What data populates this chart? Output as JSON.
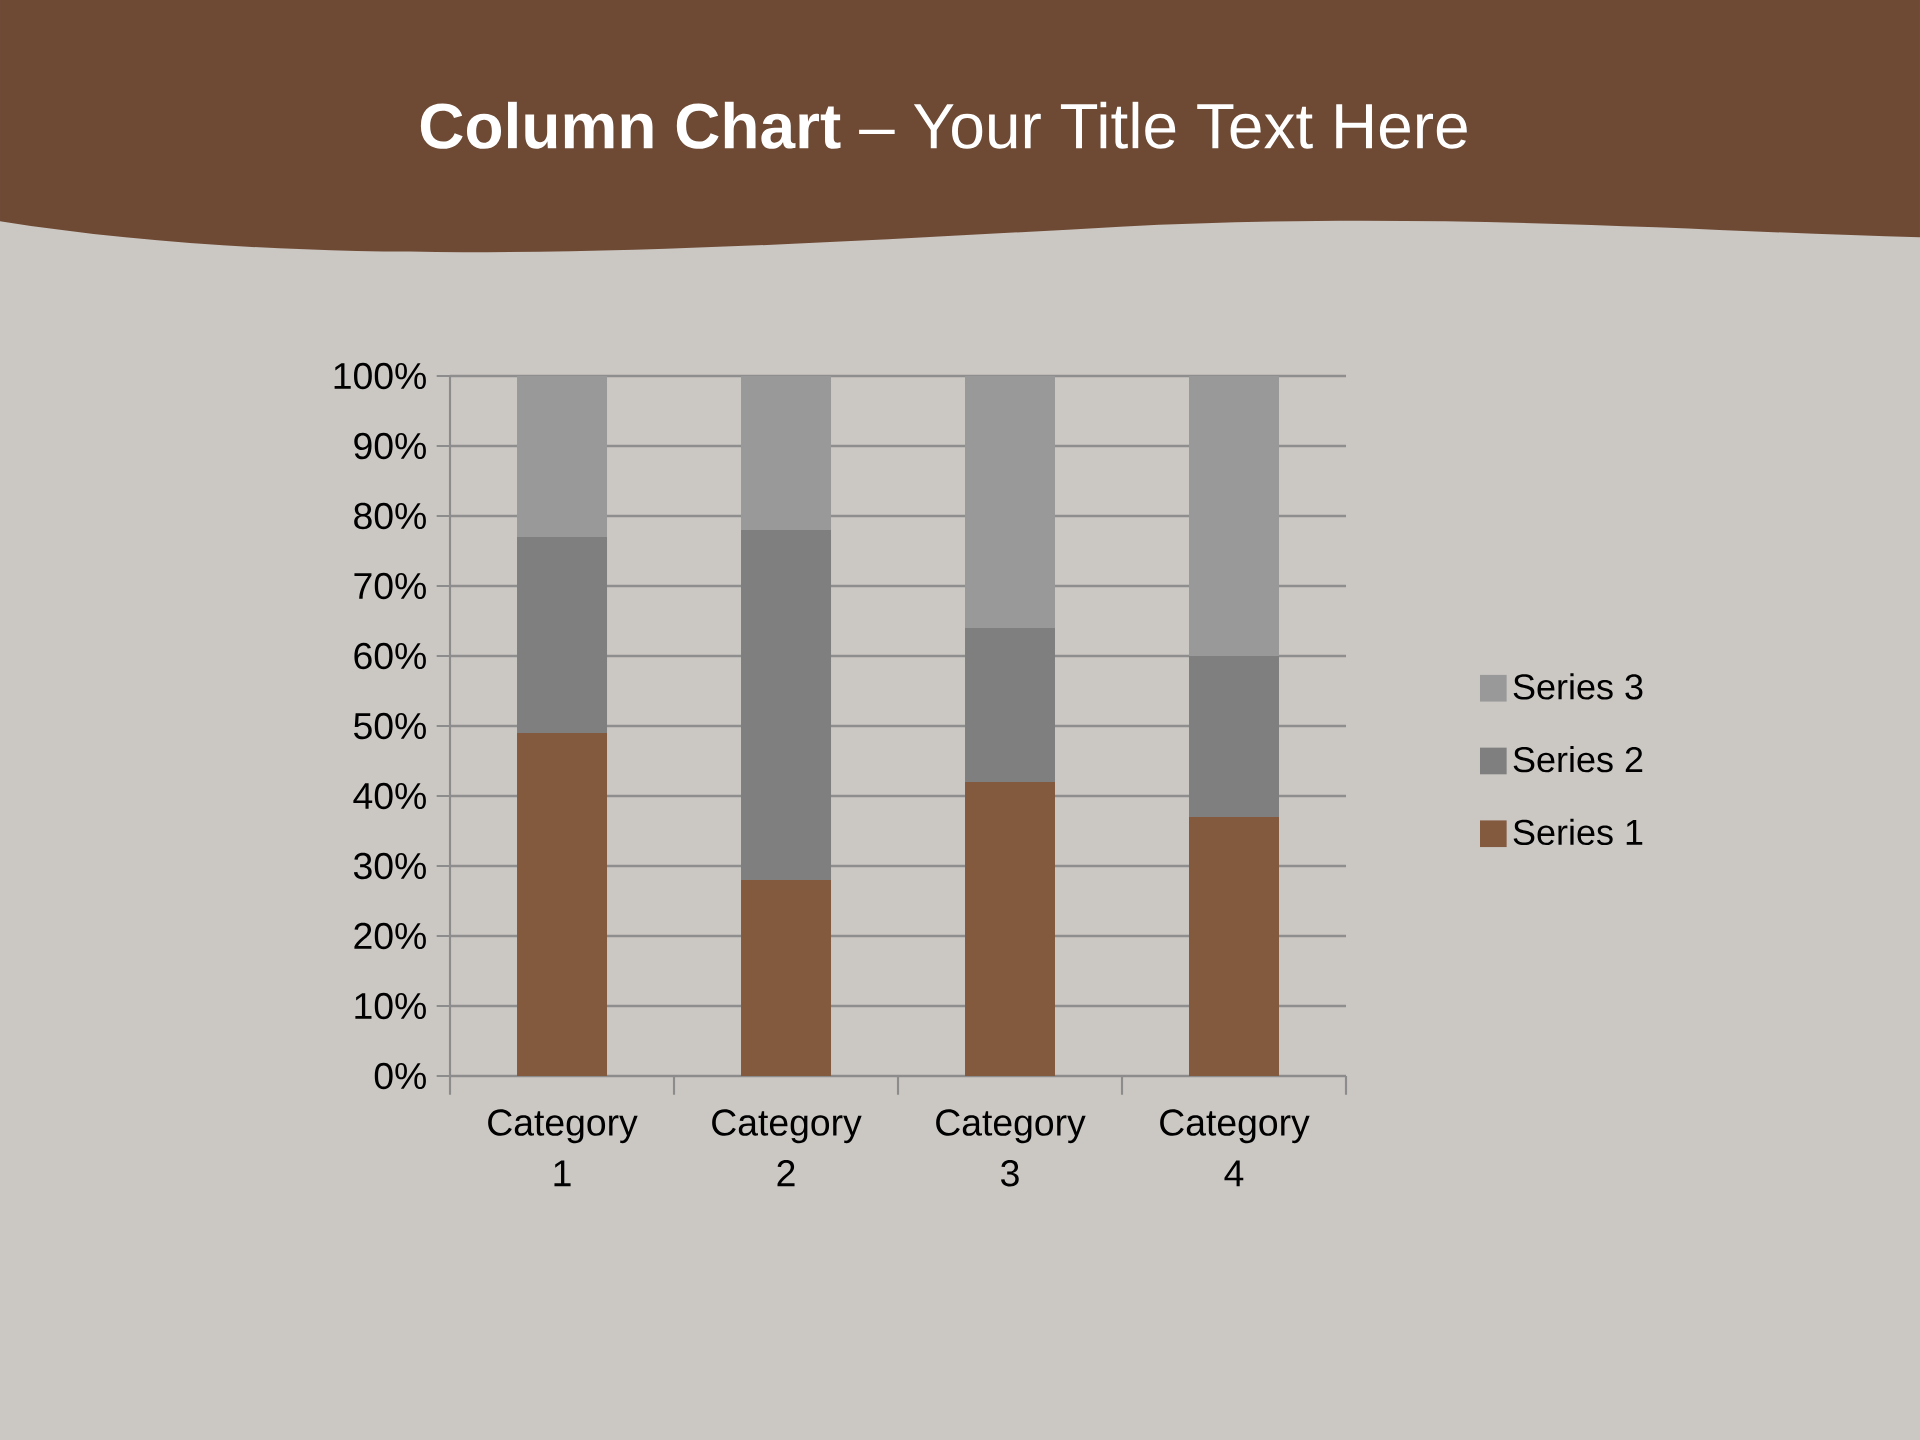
{
  "chart_data": {
    "type": "bar",
    "title": "**Column Chart** – Your Title Text Here",
    "categories": [
      "Category 1",
      "Category 2",
      "Category 3",
      "Category 4"
    ],
    "series": [
      {
        "name": "Series 1",
        "color": "#845a3f",
        "values": [
          49,
          28,
          42,
          37
        ]
      },
      {
        "name": "Series 2",
        "color": "#7f7f7f",
        "values": [
          28,
          50,
          22,
          23
        ]
      },
      {
        "name": "Series 3",
        "color": "#999999",
        "values": [
          23,
          22,
          36,
          40
        ]
      }
    ],
    "stacked": true,
    "ylim": [
      0,
      100
    ],
    "yticks": [
      {
        "value": 0,
        "label": "0%"
      },
      {
        "value": 10,
        "label": "10%"
      },
      {
        "value": 20,
        "label": "20%"
      },
      {
        "value": 30,
        "label": "30%"
      },
      {
        "value": 40,
        "label": "40%"
      },
      {
        "value": 50,
        "label": "50%"
      },
      {
        "value": 60,
        "label": "60%"
      },
      {
        "value": 70,
        "label": "70%"
      },
      {
        "value": 80,
        "label": "80%"
      },
      {
        "value": 90,
        "label": "90%"
      },
      {
        "value": 100,
        "label": "100%"
      }
    ],
    "grid": "y",
    "legend": "right"
  }
}
